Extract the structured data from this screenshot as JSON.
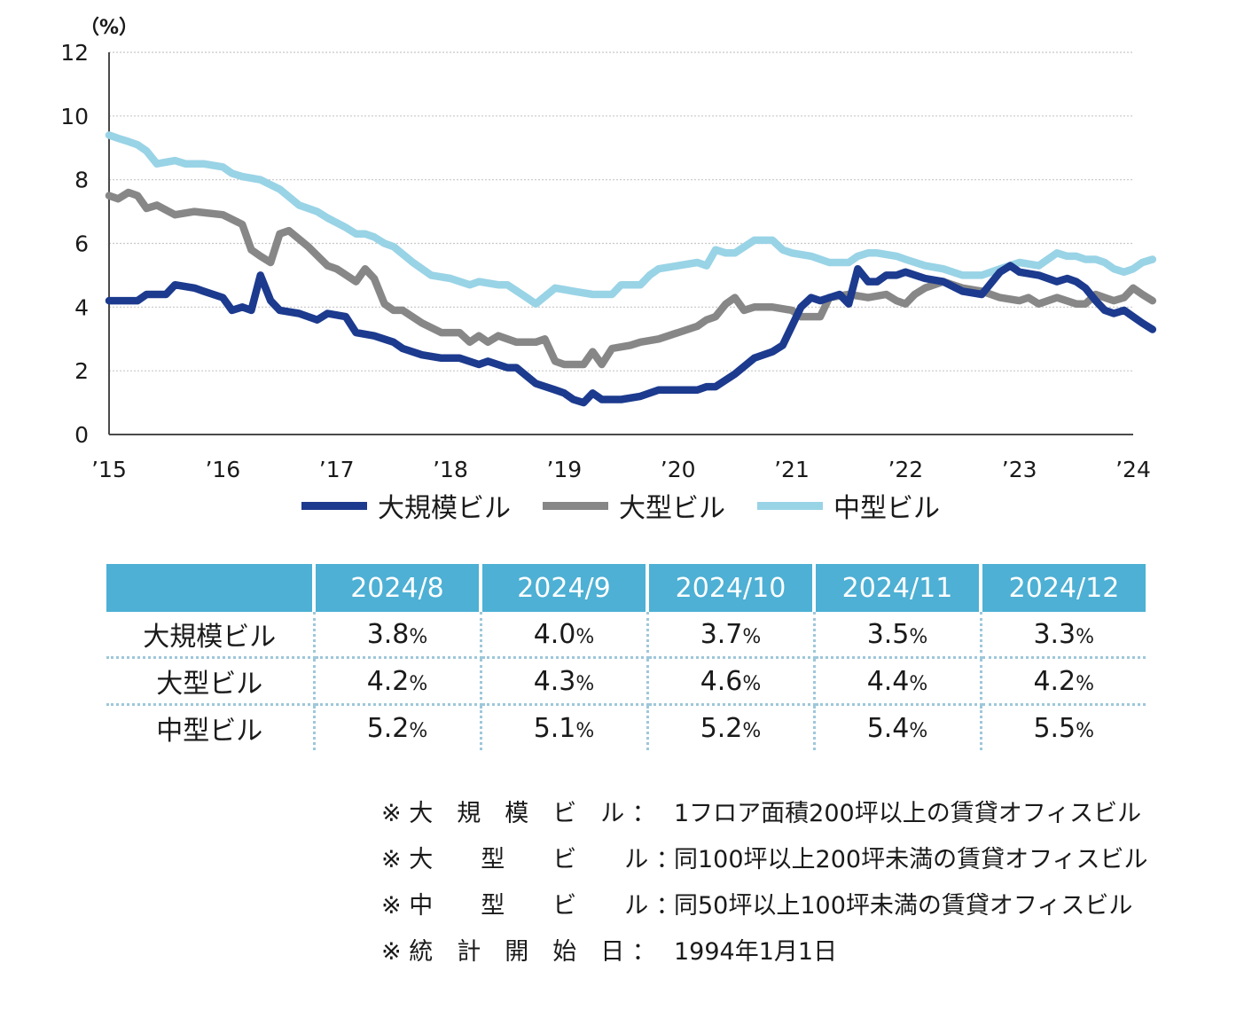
{
  "chart_data": {
    "type": "line",
    "y_unit": "（%）",
    "ylim": [
      0,
      12
    ],
    "yticks": [
      0,
      2,
      4,
      6,
      8,
      10,
      12
    ],
    "grid": true,
    "legend_position": "bottom",
    "xlim": [
      2015,
      2024
    ],
    "xtick_values": [
      2015,
      2016,
      2017,
      2018,
      2019,
      2020,
      2021,
      2022,
      2023,
      2024
    ],
    "xtick_labels": [
      "’15",
      "’16",
      "’17",
      "’18",
      "’19",
      "’20",
      "’21",
      "’22",
      "’23",
      "’24"
    ],
    "series": [
      {
        "name": "大規模ビル",
        "color": "#1c3a8e",
        "points": [
          [
            2015.0,
            4.2
          ],
          [
            2015.25,
            4.2
          ],
          [
            2015.33,
            4.4
          ],
          [
            2015.5,
            4.4
          ],
          [
            2015.58,
            4.7
          ],
          [
            2015.75,
            4.6
          ],
          [
            2015.83,
            4.5
          ],
          [
            2016.0,
            4.3
          ],
          [
            2016.08,
            3.9
          ],
          [
            2016.17,
            4.0
          ],
          [
            2016.25,
            3.9
          ],
          [
            2016.33,
            5.0
          ],
          [
            2016.42,
            4.2
          ],
          [
            2016.5,
            3.9
          ],
          [
            2016.67,
            3.8
          ],
          [
            2016.83,
            3.6
          ],
          [
            2016.92,
            3.8
          ],
          [
            2017.08,
            3.7
          ],
          [
            2017.17,
            3.2
          ],
          [
            2017.33,
            3.1
          ],
          [
            2017.5,
            2.9
          ],
          [
            2017.58,
            2.7
          ],
          [
            2017.75,
            2.5
          ],
          [
            2017.92,
            2.4
          ],
          [
            2018.08,
            2.4
          ],
          [
            2018.25,
            2.2
          ],
          [
            2018.33,
            2.3
          ],
          [
            2018.5,
            2.1
          ],
          [
            2018.58,
            2.1
          ],
          [
            2018.75,
            1.6
          ],
          [
            2018.92,
            1.4
          ],
          [
            2019.0,
            1.3
          ],
          [
            2019.08,
            1.1
          ],
          [
            2019.17,
            1.0
          ],
          [
            2019.25,
            1.3
          ],
          [
            2019.33,
            1.1
          ],
          [
            2019.5,
            1.1
          ],
          [
            2019.67,
            1.2
          ],
          [
            2019.83,
            1.4
          ],
          [
            2020.0,
            1.4
          ],
          [
            2020.17,
            1.4
          ],
          [
            2020.25,
            1.5
          ],
          [
            2020.33,
            1.5
          ],
          [
            2020.5,
            1.9
          ],
          [
            2020.67,
            2.4
          ],
          [
            2020.83,
            2.6
          ],
          [
            2020.92,
            2.8
          ],
          [
            2021.0,
            3.4
          ],
          [
            2021.08,
            4.0
          ],
          [
            2021.17,
            4.3
          ],
          [
            2021.25,
            4.2
          ],
          [
            2021.42,
            4.4
          ],
          [
            2021.5,
            4.1
          ],
          [
            2021.58,
            5.2
          ],
          [
            2021.67,
            4.8
          ],
          [
            2021.75,
            4.8
          ],
          [
            2021.83,
            5.0
          ],
          [
            2021.92,
            5.0
          ],
          [
            2022.0,
            5.1
          ],
          [
            2022.17,
            4.9
          ],
          [
            2022.33,
            4.8
          ],
          [
            2022.5,
            4.5
          ],
          [
            2022.67,
            4.4
          ],
          [
            2022.83,
            5.1
          ],
          [
            2022.92,
            5.3
          ],
          [
            2023.0,
            5.1
          ],
          [
            2023.17,
            5.0
          ],
          [
            2023.33,
            4.8
          ],
          [
            2023.42,
            4.9
          ],
          [
            2023.5,
            4.8
          ],
          [
            2023.58,
            4.6
          ],
          [
            2023.67,
            4.2
          ],
          [
            2023.75,
            3.9
          ],
          [
            2023.83,
            3.8
          ],
          [
            2023.92,
            3.9
          ],
          [
            2024.0,
            3.7
          ],
          [
            2024.08,
            3.5
          ],
          [
            2024.17,
            3.3
          ]
        ]
      },
      {
        "name": "大型ビル",
        "color": "#878787",
        "points": [
          [
            2015.0,
            7.5
          ],
          [
            2015.08,
            7.4
          ],
          [
            2015.17,
            7.6
          ],
          [
            2015.25,
            7.5
          ],
          [
            2015.33,
            7.1
          ],
          [
            2015.42,
            7.2
          ],
          [
            2015.58,
            6.9
          ],
          [
            2015.75,
            7.0
          ],
          [
            2016.0,
            6.9
          ],
          [
            2016.17,
            6.6
          ],
          [
            2016.25,
            5.8
          ],
          [
            2016.33,
            5.6
          ],
          [
            2016.42,
            5.4
          ],
          [
            2016.5,
            6.3
          ],
          [
            2016.58,
            6.4
          ],
          [
            2016.75,
            5.9
          ],
          [
            2016.92,
            5.3
          ],
          [
            2017.0,
            5.2
          ],
          [
            2017.17,
            4.8
          ],
          [
            2017.25,
            5.2
          ],
          [
            2017.33,
            4.9
          ],
          [
            2017.42,
            4.1
          ],
          [
            2017.5,
            3.9
          ],
          [
            2017.58,
            3.9
          ],
          [
            2017.75,
            3.5
          ],
          [
            2017.92,
            3.2
          ],
          [
            2018.08,
            3.2
          ],
          [
            2018.17,
            2.9
          ],
          [
            2018.25,
            3.1
          ],
          [
            2018.33,
            2.9
          ],
          [
            2018.42,
            3.1
          ],
          [
            2018.58,
            2.9
          ],
          [
            2018.75,
            2.9
          ],
          [
            2018.83,
            3.0
          ],
          [
            2018.92,
            2.3
          ],
          [
            2019.0,
            2.2
          ],
          [
            2019.17,
            2.2
          ],
          [
            2019.25,
            2.6
          ],
          [
            2019.33,
            2.2
          ],
          [
            2019.42,
            2.7
          ],
          [
            2019.58,
            2.8
          ],
          [
            2019.67,
            2.9
          ],
          [
            2019.83,
            3.0
          ],
          [
            2020.0,
            3.2
          ],
          [
            2020.17,
            3.4
          ],
          [
            2020.25,
            3.6
          ],
          [
            2020.33,
            3.7
          ],
          [
            2020.42,
            4.1
          ],
          [
            2020.5,
            4.3
          ],
          [
            2020.58,
            3.9
          ],
          [
            2020.67,
            4.0
          ],
          [
            2020.83,
            4.0
          ],
          [
            2021.0,
            3.9
          ],
          [
            2021.08,
            3.7
          ],
          [
            2021.25,
            3.7
          ],
          [
            2021.33,
            4.3
          ],
          [
            2021.5,
            4.4
          ],
          [
            2021.67,
            4.3
          ],
          [
            2021.83,
            4.4
          ],
          [
            2021.92,
            4.2
          ],
          [
            2022.0,
            4.1
          ],
          [
            2022.08,
            4.4
          ],
          [
            2022.17,
            4.6
          ],
          [
            2022.33,
            4.8
          ],
          [
            2022.5,
            4.6
          ],
          [
            2022.67,
            4.5
          ],
          [
            2022.83,
            4.3
          ],
          [
            2023.0,
            4.2
          ],
          [
            2023.08,
            4.3
          ],
          [
            2023.17,
            4.1
          ],
          [
            2023.33,
            4.3
          ],
          [
            2023.5,
            4.1
          ],
          [
            2023.58,
            4.1
          ],
          [
            2023.67,
            4.4
          ],
          [
            2023.75,
            4.3
          ],
          [
            2023.83,
            4.2
          ],
          [
            2023.92,
            4.3
          ],
          [
            2024.0,
            4.6
          ],
          [
            2024.08,
            4.4
          ],
          [
            2024.17,
            4.2
          ]
        ]
      },
      {
        "name": "中型ビル",
        "color": "#99d3e6",
        "points": [
          [
            2015.0,
            9.4
          ],
          [
            2015.08,
            9.3
          ],
          [
            2015.17,
            9.2
          ],
          [
            2015.25,
            9.1
          ],
          [
            2015.33,
            8.9
          ],
          [
            2015.42,
            8.5
          ],
          [
            2015.58,
            8.6
          ],
          [
            2015.67,
            8.5
          ],
          [
            2015.83,
            8.5
          ],
          [
            2016.0,
            8.4
          ],
          [
            2016.08,
            8.2
          ],
          [
            2016.17,
            8.1
          ],
          [
            2016.33,
            8.0
          ],
          [
            2016.5,
            7.7
          ],
          [
            2016.67,
            7.2
          ],
          [
            2016.83,
            7.0
          ],
          [
            2016.92,
            6.8
          ],
          [
            2017.08,
            6.5
          ],
          [
            2017.17,
            6.3
          ],
          [
            2017.25,
            6.3
          ],
          [
            2017.33,
            6.2
          ],
          [
            2017.42,
            6.0
          ],
          [
            2017.5,
            5.9
          ],
          [
            2017.67,
            5.4
          ],
          [
            2017.83,
            5.0
          ],
          [
            2018.0,
            4.9
          ],
          [
            2018.17,
            4.7
          ],
          [
            2018.25,
            4.8
          ],
          [
            2018.42,
            4.7
          ],
          [
            2018.5,
            4.7
          ],
          [
            2018.67,
            4.3
          ],
          [
            2018.75,
            4.1
          ],
          [
            2018.92,
            4.6
          ],
          [
            2019.08,
            4.5
          ],
          [
            2019.25,
            4.4
          ],
          [
            2019.42,
            4.4
          ],
          [
            2019.5,
            4.7
          ],
          [
            2019.67,
            4.7
          ],
          [
            2019.75,
            5.0
          ],
          [
            2019.83,
            5.2
          ],
          [
            2020.0,
            5.3
          ],
          [
            2020.17,
            5.4
          ],
          [
            2020.25,
            5.3
          ],
          [
            2020.33,
            5.8
          ],
          [
            2020.42,
            5.7
          ],
          [
            2020.5,
            5.7
          ],
          [
            2020.67,
            6.1
          ],
          [
            2020.83,
            6.1
          ],
          [
            2020.92,
            5.8
          ],
          [
            2021.0,
            5.7
          ],
          [
            2021.17,
            5.6
          ],
          [
            2021.33,
            5.4
          ],
          [
            2021.5,
            5.4
          ],
          [
            2021.58,
            5.6
          ],
          [
            2021.67,
            5.7
          ],
          [
            2021.75,
            5.7
          ],
          [
            2021.92,
            5.6
          ],
          [
            2022.0,
            5.5
          ],
          [
            2022.17,
            5.3
          ],
          [
            2022.33,
            5.2
          ],
          [
            2022.5,
            5.0
          ],
          [
            2022.67,
            5.0
          ],
          [
            2022.83,
            5.2
          ],
          [
            2023.0,
            5.4
          ],
          [
            2023.17,
            5.3
          ],
          [
            2023.33,
            5.7
          ],
          [
            2023.42,
            5.6
          ],
          [
            2023.5,
            5.6
          ],
          [
            2023.58,
            5.5
          ],
          [
            2023.67,
            5.5
          ],
          [
            2023.75,
            5.4
          ],
          [
            2023.83,
            5.2
          ],
          [
            2023.92,
            5.1
          ],
          [
            2024.0,
            5.2
          ],
          [
            2024.08,
            5.4
          ],
          [
            2024.17,
            5.5
          ]
        ]
      }
    ],
    "table": {
      "columns": [
        "2024/8",
        "2024/9",
        "2024/10",
        "2024/11",
        "2024/12"
      ],
      "unit": "%",
      "rows": [
        {
          "label": "大規模ビル",
          "values": [
            "3.8",
            "4.0",
            "3.7",
            "3.5",
            "3.3"
          ]
        },
        {
          "label": "大型ビル",
          "values": [
            "4.2",
            "4.3",
            "4.6",
            "4.4",
            "4.2"
          ]
        },
        {
          "label": "中型ビル",
          "values": [
            "5.2",
            "5.1",
            "5.2",
            "5.4",
            "5.5"
          ]
        }
      ]
    }
  },
  "legend": [
    {
      "label": "大規模ビル",
      "color": "#1c3a8e"
    },
    {
      "label": "大型ビル",
      "color": "#878787"
    },
    {
      "label": "中型ビル",
      "color": "#99d3e6"
    }
  ],
  "notes": [
    {
      "key": "※ 大　規　模　ビ　ル ：",
      "text": "1フロア面積200坪以上の賃貸オフィスビル"
    },
    {
      "key": "※ 大　　型　　ビ　　ル ：",
      "text": "同100坪以上200坪未満の賃貸オフィスビル"
    },
    {
      "key": "※ 中　　型　　ビ　　ル ：",
      "text": "同50坪以上100坪未満の賃貸オフィスビル"
    },
    {
      "key": "※ 統　計　開　始　日 ：",
      "text": "1994年1月1日"
    }
  ],
  "style": {
    "header_color": "#4db0d4",
    "grid_color": "#c8c8c8"
  }
}
